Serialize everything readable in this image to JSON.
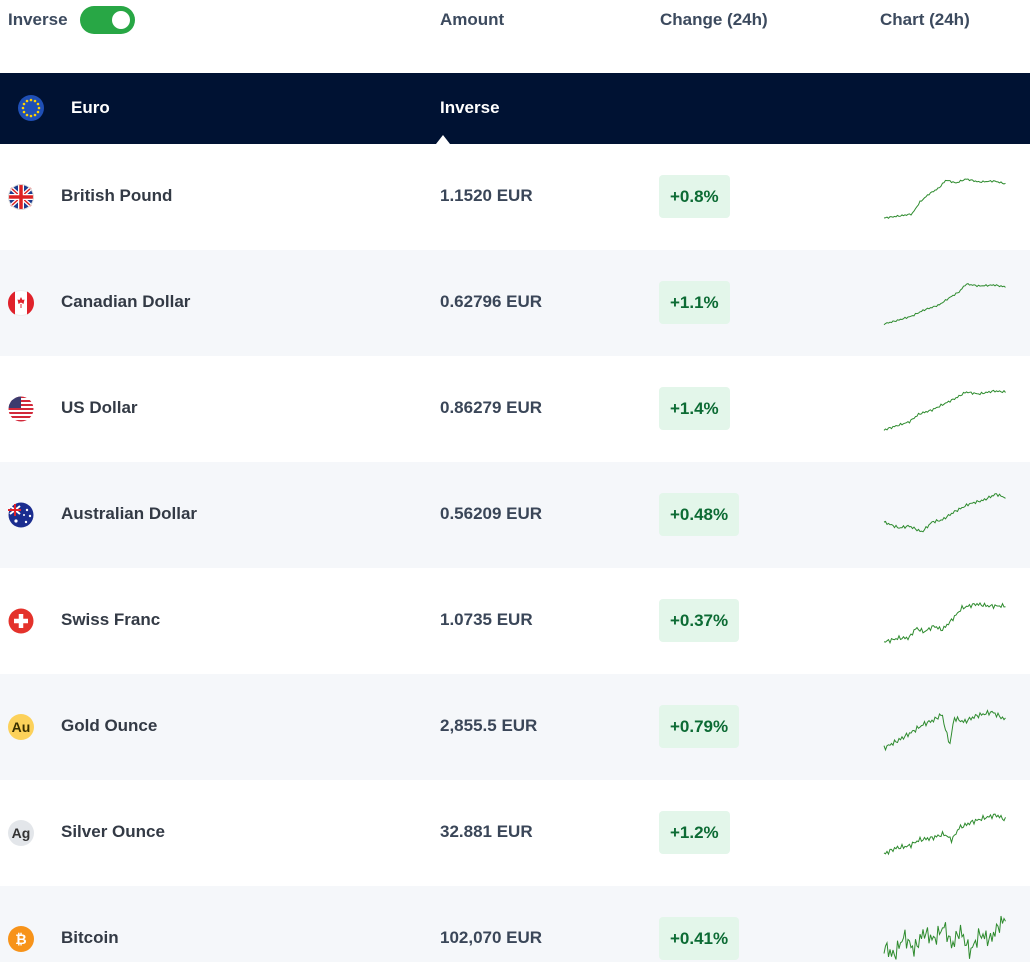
{
  "header": {
    "toggle_label": "Inverse",
    "columns": [
      "Amount",
      "Change (24h)",
      "Chart (24h)"
    ]
  },
  "base": {
    "name": "Euro",
    "column": "Inverse"
  },
  "rows": [
    {
      "name": "British Pound",
      "amount": "1.1520 EUR",
      "change": "+0.8%"
    },
    {
      "name": "Canadian Dollar",
      "amount": "0.62796 EUR",
      "change": "+1.1%"
    },
    {
      "name": "US Dollar",
      "amount": "0.86279 EUR",
      "change": "+1.4%"
    },
    {
      "name": "Australian Dollar",
      "amount": "0.56209 EUR",
      "change": "+0.48%"
    },
    {
      "name": "Swiss Franc",
      "amount": "1.0735 EUR",
      "change": "+0.37%"
    },
    {
      "name": "Gold Ounce",
      "icon_text": "Au",
      "amount": "2,855.5 EUR",
      "change": "+0.79%"
    },
    {
      "name": "Silver Ounce",
      "icon_text": "Ag",
      "amount": "32.881 EUR",
      "change": "+1.2%"
    },
    {
      "name": "Bitcoin",
      "icon_text": "₿",
      "amount": "102,070 EUR",
      "change": "+0.41%"
    }
  ]
}
